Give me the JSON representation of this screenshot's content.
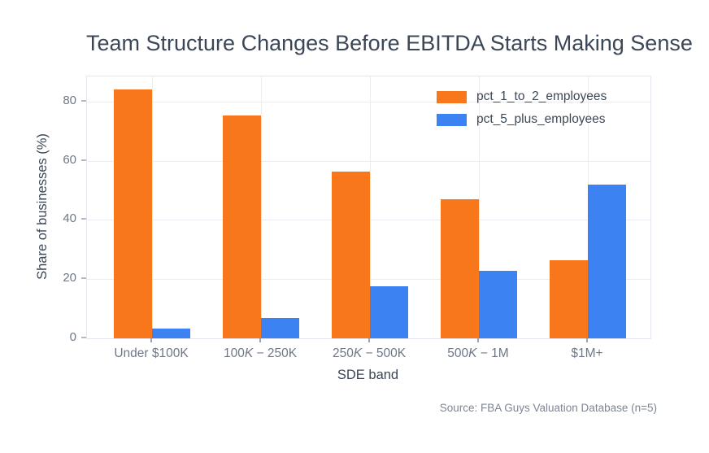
{
  "title": "Team Structure Changes Before EBITDA Starts Making Sense",
  "source_note": "Source: FBA Guys Valuation Database (n=5)",
  "colors": {
    "background": "#ffffff",
    "series_1_to_2": "#f8771b",
    "series_5_plus": "#3d82f2",
    "title_text": "#3b4757",
    "axis_label_text": "#3b4757",
    "tick_label_text": "#6e7887",
    "gridline": "#eaecf4",
    "plot_border": "#e3e6ee",
    "source_text": "#7d8694"
  },
  "chart_data": {
    "type": "bar",
    "title": "Team Structure Changes Before EBITDA Starts Making Sense",
    "xlabel": "SDE band",
    "ylabel": "Share of businesses (%)",
    "categories": [
      "Under $100K",
      "100K − 250K",
      "250K − 500K",
      "500K − 1M",
      "$1M+"
    ],
    "category_label_segments": [
      [
        {
          "text": "Under $100K"
        }
      ],
      [
        {
          "text": "100"
        },
        {
          "text": "K",
          "italic": true
        },
        {
          "text": " − 250K"
        }
      ],
      [
        {
          "text": "250"
        },
        {
          "text": "K",
          "italic": true
        },
        {
          "text": " − 500K"
        }
      ],
      [
        {
          "text": "500"
        },
        {
          "text": "K",
          "italic": true
        },
        {
          "text": " − 1M"
        }
      ],
      [
        {
          "text": "$1M+"
        }
      ]
    ],
    "series": [
      {
        "name": "pct_1_to_2_employees",
        "color": "#f8771b",
        "values": [
          84.0,
          75.4,
          56.3,
          47.0,
          26.3
        ]
      },
      {
        "name": "pct_5_plus_employees",
        "color": "#3d82f2",
        "values": [
          3.4,
          6.9,
          17.6,
          22.9,
          51.9
        ]
      }
    ],
    "yticks": [
      0,
      20,
      40,
      60,
      80
    ],
    "ylim": [
      0,
      88.5
    ],
    "grid": true,
    "legend_position": "upper right"
  }
}
